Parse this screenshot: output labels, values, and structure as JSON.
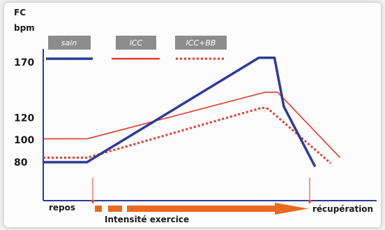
{
  "chart_data": {
    "type": "line",
    "yaxis_label_line1": "FC",
    "yaxis_label_line2": "bpm",
    "yticks": [
      170,
      120,
      100,
      80
    ],
    "ylim": [
      60,
      190
    ],
    "xlim": [
      0,
      100
    ],
    "colors": {
      "sain": "#2b3a9a",
      "icc": "#e8382a",
      "iccbb": "#e8382a",
      "arrow": "#e86a1f",
      "legend_box": "#8c8c8c",
      "axis": "#2b3a9a"
    },
    "series": [
      {
        "name": "sain",
        "style": "solid",
        "x": [
          0,
          14,
          69,
          74,
          77,
          87
        ],
        "y": [
          80,
          80,
          174,
          174,
          130,
          76
        ]
      },
      {
        "name": "ICC",
        "style": "thin",
        "x": [
          0,
          14,
          71,
          75,
          95
        ],
        "y": [
          101,
          101,
          143,
          143,
          84
        ]
      },
      {
        "name": "ICC+BB",
        "style": "dotted",
        "x": [
          0,
          14,
          70,
          72,
          92
        ],
        "y": [
          84,
          84,
          129,
          128,
          79
        ]
      }
    ],
    "bottom_labels": {
      "start": "repos",
      "end": "récupération",
      "axis": "Intensité exercice"
    }
  }
}
